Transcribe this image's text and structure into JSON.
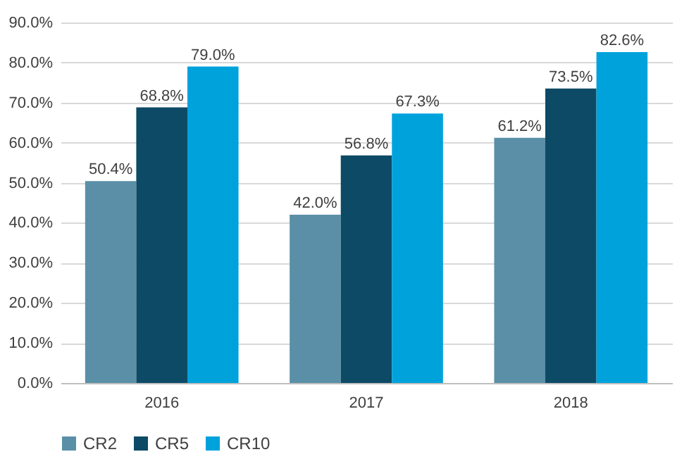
{
  "chart_data": {
    "type": "bar",
    "categories": [
      "2016",
      "2017",
      "2018"
    ],
    "series": [
      {
        "name": "CR2",
        "color": "#5b8fa8",
        "values": [
          50.4,
          42.0,
          61.2
        ],
        "value_labels": [
          "50.4%",
          "42.0%",
          "61.2%"
        ]
      },
      {
        "name": "CR5",
        "color": "#0d4a66",
        "values": [
          68.8,
          56.8,
          73.5
        ],
        "value_labels": [
          "68.8%",
          "56.8%",
          "73.5%"
        ]
      },
      {
        "name": "CR10",
        "color": "#00a2dc",
        "values": [
          79.0,
          67.3,
          82.6
        ],
        "value_labels": [
          "79.0%",
          "67.3%",
          "82.6%"
        ]
      }
    ],
    "ylim": [
      0,
      90
    ],
    "yticks": [
      {
        "value": 0,
        "label": "0.0%"
      },
      {
        "value": 10,
        "label": "10.0%"
      },
      {
        "value": 20,
        "label": "20.0%"
      },
      {
        "value": 30,
        "label": "30.0%"
      },
      {
        "value": 40,
        "label": "40.0%"
      },
      {
        "value": 50,
        "label": "50.0%"
      },
      {
        "value": 60,
        "label": "60.0%"
      },
      {
        "value": 70,
        "label": "70.0%"
      },
      {
        "value": 80,
        "label": "80.0%"
      },
      {
        "value": 90,
        "label": "90.0%"
      }
    ],
    "grid": "y",
    "legend": "bottom"
  }
}
